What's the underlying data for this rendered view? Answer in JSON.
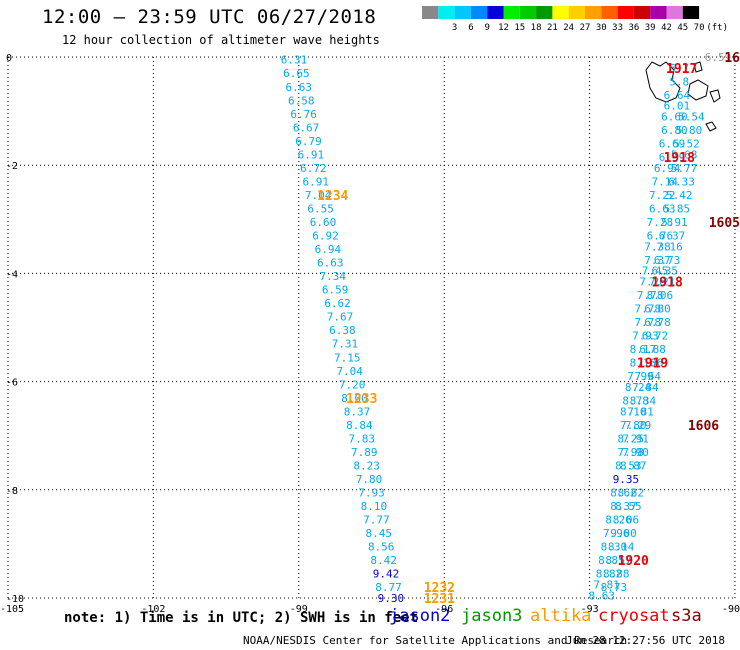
{
  "title": "12:00 — 23:59 UTC 06/27/2018",
  "subtitle": "12 hour collection of altimeter wave heights",
  "legend": {
    "unit": "(ft)",
    "bins": [
      {
        "label": "",
        "color": "#888888"
      },
      {
        "label": "3",
        "color": "#00eeee"
      },
      {
        "label": "6",
        "color": "#00c8ff"
      },
      {
        "label": "9",
        "color": "#0088ff"
      },
      {
        "label": "12",
        "color": "#0000dd"
      },
      {
        "label": "15",
        "color": "#00ee00"
      },
      {
        "label": "18",
        "color": "#00cc00"
      },
      {
        "label": "21",
        "color": "#009900"
      },
      {
        "label": "24",
        "color": "#ffff00"
      },
      {
        "label": "27",
        "color": "#ffd000"
      },
      {
        "label": "30",
        "color": "#ffa000"
      },
      {
        "label": "33",
        "color": "#ff6000"
      },
      {
        "label": "36",
        "color": "#ff0000"
      },
      {
        "label": "39",
        "color": "#cc0000"
      },
      {
        "label": "42",
        "color": "#aa00aa"
      },
      {
        "label": "45",
        "color": "#dd77dd"
      },
      {
        "label": "70",
        "color": "#000000"
      }
    ]
  },
  "note": "note: 1) Time is in UTC; 2) SWH is in feet",
  "satellites": [
    {
      "name": "jason2",
      "color": "#0000cc"
    },
    {
      "name": "jason3",
      "color": "#009900"
    },
    {
      "name": "altika",
      "color": "#ff9900"
    },
    {
      "name": "cryosat",
      "color": "#ee0000"
    },
    {
      "name": "s3a",
      "color": "#880000"
    }
  ],
  "credit": "NOAA/NESDIS Center for Satellite Applications and Research",
  "timestamp": "Jun 28 12:27:56 UTC 2018",
  "chart_data": {
    "type": "scatter",
    "xlim": [
      -105,
      -90
    ],
    "ylim": [
      -10,
      0
    ],
    "x_ticks": [
      {
        "value": -105,
        "label": "-105"
      },
      {
        "value": -102,
        "label": "-102"
      },
      {
        "value": -99,
        "label": "-99"
      },
      {
        "value": -96,
        "label": "-96"
      },
      {
        "value": -93,
        "label": "-93"
      },
      {
        "value": -90,
        "label": "-90"
      }
    ],
    "y_ticks": [
      {
        "value": 0,
        "label": "0"
      },
      {
        "value": -2,
        "label": "-2"
      },
      {
        "value": -4,
        "label": "-4"
      },
      {
        "value": -6,
        "label": "-6"
      },
      {
        "value": -8,
        "label": "-8"
      },
      {
        "value": -10,
        "label": "-10"
      }
    ],
    "grid": true,
    "tracks": [
      {
        "points": [
          {
            "lon": -99.1,
            "lat": -0.05,
            "v": "6.31"
          },
          {
            "lon": -99.05,
            "lat": -0.3,
            "v": "6.65"
          },
          {
            "lon": -99.0,
            "lat": -0.55,
            "v": "6.63"
          },
          {
            "lon": -98.95,
            "lat": -0.8,
            "v": "6.58"
          },
          {
            "lon": -98.9,
            "lat": -1.05,
            "v": "6.76"
          },
          {
            "lon": -98.85,
            "lat": -1.3,
            "v": "6.67"
          },
          {
            "lon": -98.8,
            "lat": -1.55,
            "v": "6.79"
          },
          {
            "lon": -98.75,
            "lat": -1.8,
            "v": "6.91"
          },
          {
            "lon": -98.7,
            "lat": -2.05,
            "v": "6.72"
          },
          {
            "lon": -98.65,
            "lat": -2.3,
            "v": "6.91"
          },
          {
            "lon": -98.6,
            "lat": -2.55,
            "v": "7.04"
          },
          {
            "lon": -98.55,
            "lat": -2.8,
            "v": "6.55"
          },
          {
            "lon": -98.5,
            "lat": -3.05,
            "v": "6.60"
          },
          {
            "lon": -98.45,
            "lat": -3.3,
            "v": "6.92"
          },
          {
            "lon": -98.4,
            "lat": -3.55,
            "v": "6.94"
          },
          {
            "lon": -98.35,
            "lat": -3.8,
            "v": "6.63"
          },
          {
            "lon": -98.3,
            "lat": -4.05,
            "v": "7.34"
          },
          {
            "lon": -98.25,
            "lat": -4.3,
            "v": "6.59"
          },
          {
            "lon": -98.2,
            "lat": -4.55,
            "v": "6.62"
          },
          {
            "lon": -98.15,
            "lat": -4.8,
            "v": "7.67"
          },
          {
            "lon": -98.1,
            "lat": -5.05,
            "v": "6.38"
          },
          {
            "lon": -98.05,
            "lat": -5.3,
            "v": "7.31"
          },
          {
            "lon": -98.0,
            "lat": -5.55,
            "v": "7.15"
          },
          {
            "lon": -97.95,
            "lat": -5.8,
            "v": "7.04"
          },
          {
            "lon": -97.9,
            "lat": -6.05,
            "v": "7.20"
          },
          {
            "lon": -97.85,
            "lat": -6.3,
            "v": "8.00"
          },
          {
            "lon": -97.8,
            "lat": -6.55,
            "v": "8.37"
          },
          {
            "lon": -97.75,
            "lat": -6.8,
            "v": "8.84"
          },
          {
            "lon": -97.7,
            "lat": -7.05,
            "v": "7.83"
          },
          {
            "lon": -97.65,
            "lat": -7.3,
            "v": "7.89"
          },
          {
            "lon": -97.6,
            "lat": -7.55,
            "v": "8.23"
          },
          {
            "lon": -97.55,
            "lat": -7.8,
            "v": "7.80"
          },
          {
            "lon": -97.5,
            "lat": -8.05,
            "v": "7.93"
          },
          {
            "lon": -97.45,
            "lat": -8.3,
            "v": "8.10"
          },
          {
            "lon": -97.4,
            "lat": -8.55,
            "v": "7.77"
          },
          {
            "lon": -97.35,
            "lat": -8.8,
            "v": "8.45"
          },
          {
            "lon": -97.3,
            "lat": -9.05,
            "v": "8.56"
          },
          {
            "lon": -97.25,
            "lat": -9.3,
            "v": "8.42"
          },
          {
            "lon": -97.2,
            "lat": -9.55,
            "v": "9.42",
            "dark": true
          },
          {
            "lon": -97.15,
            "lat": -9.8,
            "v": "8.77"
          },
          {
            "lon": -97.1,
            "lat": -10.0,
            "v": "9.30",
            "dark": true
          }
        ],
        "labels": [
          {
            "lon": -98.3,
            "lat": -2.55,
            "text": "1234",
            "sat": "altika"
          },
          {
            "lon": -97.7,
            "lat": -6.3,
            "text": "1233",
            "sat": "altika"
          },
          {
            "lon": -96.1,
            "lat": -9.8,
            "text": "1232",
            "sat": "altika"
          },
          {
            "lon": -96.1,
            "lat": -10.0,
            "text": "1231",
            "sat": "altika"
          }
        ]
      },
      {
        "points": [
          {
            "lon": -91.15,
            "lat": -0.2,
            "v": "5.7"
          },
          {
            "lon": -91.15,
            "lat": -0.45,
            "v": "5.8"
          },
          {
            "lon": -91.2,
            "lat": -0.7,
            "v": "6.64"
          },
          {
            "lon": -91.2,
            "lat": -0.9,
            "v": "6.01"
          },
          {
            "lon": -91.25,
            "lat": -1.1,
            "v": "6.60"
          },
          {
            "lon": -91.25,
            "lat": -1.35,
            "v": "6.80"
          },
          {
            "lon": -91.3,
            "lat": -1.6,
            "v": "6.69"
          },
          {
            "lon": -91.3,
            "lat": -1.85,
            "v": "6.39"
          },
          {
            "lon": -91.4,
            "lat": -2.05,
            "v": "6.94"
          },
          {
            "lon": -91.45,
            "lat": -2.3,
            "v": "7.14"
          },
          {
            "lon": -91.5,
            "lat": -2.55,
            "v": "7.22"
          },
          {
            "lon": -91.5,
            "lat": -2.8,
            "v": "6.63"
          },
          {
            "lon": -91.55,
            "lat": -3.05,
            "v": "7.28"
          },
          {
            "lon": -91.55,
            "lat": -3.3,
            "v": "6.76"
          },
          {
            "lon": -91.6,
            "lat": -3.5,
            "v": "7.38"
          },
          {
            "lon": -91.6,
            "lat": -3.75,
            "v": "7.37"
          },
          {
            "lon": -91.65,
            "lat": -3.95,
            "v": "7.45"
          },
          {
            "lon": -91.7,
            "lat": -4.15,
            "v": "7.26"
          },
          {
            "lon": -91.75,
            "lat": -4.4,
            "v": "7.78"
          },
          {
            "lon": -91.8,
            "lat": -4.65,
            "v": "7.78"
          },
          {
            "lon": -91.8,
            "lat": -4.9,
            "v": "7.78"
          },
          {
            "lon": -91.85,
            "lat": -5.15,
            "v": "7.93"
          },
          {
            "lon": -91.9,
            "lat": -5.4,
            "v": "8.17"
          },
          {
            "lon": -91.9,
            "lat": -5.65,
            "v": "8.16"
          },
          {
            "lon": -91.95,
            "lat": -5.9,
            "v": "7.99"
          },
          {
            "lon": -92.0,
            "lat": -6.1,
            "v": "8.24"
          },
          {
            "lon": -92.05,
            "lat": -6.35,
            "v": "8.78"
          },
          {
            "lon": -92.1,
            "lat": -6.55,
            "v": "8.10"
          },
          {
            "lon": -92.1,
            "lat": -6.8,
            "v": "7.80"
          },
          {
            "lon": -92.15,
            "lat": -7.05,
            "v": "8.25"
          },
          {
            "lon": -92.15,
            "lat": -7.3,
            "v": "7.98"
          },
          {
            "lon": -92.2,
            "lat": -7.55,
            "v": "8.53"
          },
          {
            "lon": -92.25,
            "lat": -7.8,
            "v": "9.35",
            "dark": true
          },
          {
            "lon": -92.3,
            "lat": -8.05,
            "v": "8.62"
          },
          {
            "lon": -92.3,
            "lat": -8.3,
            "v": "8.37"
          },
          {
            "lon": -92.4,
            "lat": -8.55,
            "v": "8.26"
          },
          {
            "lon": -92.45,
            "lat": -8.8,
            "v": "7.96"
          },
          {
            "lon": -92.5,
            "lat": -9.05,
            "v": "8.30"
          },
          {
            "lon": -92.55,
            "lat": -9.3,
            "v": "8.85"
          },
          {
            "lon": -92.6,
            "lat": -9.55,
            "v": "8.82"
          },
          {
            "lon": -92.65,
            "lat": -9.75,
            "v": "7.81"
          },
          {
            "lon": -92.75,
            "lat": -9.95,
            "v": "8.63"
          }
        ],
        "labels": [
          {
            "lon": -91.1,
            "lat": -0.2,
            "text": "1917",
            "sat": "cryosat"
          },
          {
            "lon": -91.15,
            "lat": -1.85,
            "text": "1918",
            "sat": "cryosat"
          },
          {
            "lon": -91.4,
            "lat": -4.15,
            "text": "1918",
            "sat": "cryosat"
          },
          {
            "lon": -91.7,
            "lat": -5.65,
            "text": "1919",
            "sat": "cryosat"
          },
          {
            "lon": -92.1,
            "lat": -9.3,
            "text": "1920",
            "sat": "cryosat"
          }
        ]
      },
      {
        "points": [
          {
            "lon": -90.9,
            "lat": -1.1,
            "v": "5.54"
          },
          {
            "lon": -90.95,
            "lat": -1.35,
            "v": "5.80"
          },
          {
            "lon": -91.0,
            "lat": -1.6,
            "v": "5.52"
          },
          {
            "lon": -91.05,
            "lat": -1.8,
            "v": "5.68"
          },
          {
            "lon": -91.05,
            "lat": -2.05,
            "v": "5.77"
          },
          {
            "lon": -91.1,
            "lat": -2.3,
            "v": "6.33"
          },
          {
            "lon": -91.15,
            "lat": -2.55,
            "v": "5.42"
          },
          {
            "lon": -91.2,
            "lat": -2.8,
            "v": "5.85"
          },
          {
            "lon": -91.25,
            "lat": -3.05,
            "v": "5.91"
          },
          {
            "lon": -91.3,
            "lat": -3.3,
            "v": "6.37"
          },
          {
            "lon": -91.35,
            "lat": -3.5,
            "v": "7.16"
          },
          {
            "lon": -91.4,
            "lat": -3.75,
            "v": "6.73"
          },
          {
            "lon": -91.45,
            "lat": -3.95,
            "v": "6.35"
          },
          {
            "lon": -91.5,
            "lat": -4.15,
            "v": "7.21"
          },
          {
            "lon": -91.55,
            "lat": -4.4,
            "v": "8.06"
          },
          {
            "lon": -91.6,
            "lat": -4.65,
            "v": "6.80"
          },
          {
            "lon": -91.6,
            "lat": -4.9,
            "v": "6.78"
          },
          {
            "lon": -91.65,
            "lat": -5.15,
            "v": "6.72"
          },
          {
            "lon": -91.7,
            "lat": -5.4,
            "v": "6.88"
          },
          {
            "lon": -91.75,
            "lat": -5.65,
            "v": "7.06"
          },
          {
            "lon": -91.8,
            "lat": -5.9,
            "v": "7.64"
          },
          {
            "lon": -91.85,
            "lat": -6.1,
            "v": "7.84"
          },
          {
            "lon": -91.9,
            "lat": -6.35,
            "v": "8.34"
          },
          {
            "lon": -91.95,
            "lat": -6.55,
            "v": "7.81"
          },
          {
            "lon": -92.0,
            "lat": -6.8,
            "v": "7.29"
          },
          {
            "lon": -92.05,
            "lat": -7.05,
            "v": "7.91"
          },
          {
            "lon": -92.05,
            "lat": -7.3,
            "v": "7.90"
          },
          {
            "lon": -92.1,
            "lat": -7.55,
            "v": "8.87"
          },
          {
            "lon": -92.15,
            "lat": -8.05,
            "v": "8.62"
          },
          {
            "lon": -92.2,
            "lat": -8.3,
            "v": "8.55"
          },
          {
            "lon": -92.25,
            "lat": -8.55,
            "v": "8.06"
          },
          {
            "lon": -92.3,
            "lat": -8.8,
            "v": "9.00"
          },
          {
            "lon": -92.35,
            "lat": -9.05,
            "v": "8.14"
          },
          {
            "lon": -92.4,
            "lat": -9.3,
            "v": "8.57"
          },
          {
            "lon": -92.45,
            "lat": -9.55,
            "v": "8.88"
          },
          {
            "lon": -92.5,
            "lat": -9.8,
            "v": "8.73"
          }
        ],
        "labels": [
          {
            "lon": -90.0,
            "lat": 0.0,
            "text": "16",
            "sat": "s3a"
          },
          {
            "lon": -90.0,
            "lat": -3.05,
            "text": "1605",
            "sat": "s3a"
          },
          {
            "lon": -90.65,
            "lat": -6.8,
            "text": "1606",
            "sat": "s3a"
          }
        ]
      },
      {
        "points": [
          {
            "lon": -90.35,
            "lat": 0.0,
            "v": "6.59",
            "gray": true
          }
        ],
        "labels": []
      }
    ]
  }
}
